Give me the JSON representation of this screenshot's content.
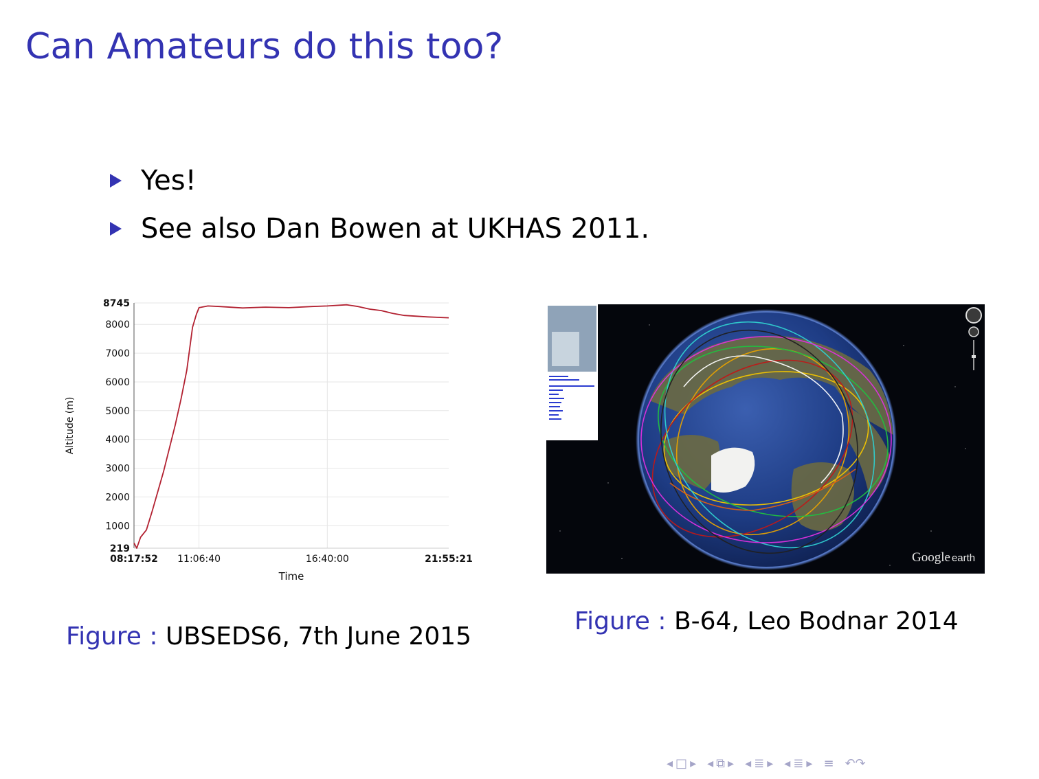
{
  "slide": {
    "title": "Can Amateurs do this too?",
    "bullets": [
      "Yes!",
      "See also Dan Bowen at UKHAS 2011."
    ]
  },
  "figures": [
    {
      "label": "Figure :",
      "caption": "UBSEDS6, 7th June 2015"
    },
    {
      "label": "Figure :",
      "caption": "B-64, Leo Bodnar 2014"
    }
  ],
  "globe": {
    "watermark_brand": "Google",
    "watermark_product": "earth"
  },
  "navigation": {
    "icons": [
      "frame-prev",
      "frame",
      "frame-next",
      "subsection-prev",
      "subsection",
      "subsection-next",
      "section-prev",
      "section",
      "section-next",
      "subsubsection-prev",
      "subsubsection",
      "subsubsection-next",
      "align",
      "search"
    ]
  },
  "colors": {
    "title": "#3333b2",
    "line": "#b22030",
    "grid": "#e6e6e6"
  },
  "chart_data": {
    "type": "line",
    "xlabel": "Time",
    "ylabel": "Altitude (m)",
    "ylim": [
      219,
      8745
    ],
    "y_ticks": [
      {
        "value": 219,
        "label": "219",
        "bold": true
      },
      {
        "value": 1000,
        "label": "1000",
        "bold": false
      },
      {
        "value": 2000,
        "label": "2000",
        "bold": false
      },
      {
        "value": 3000,
        "label": "3000",
        "bold": false
      },
      {
        "value": 4000,
        "label": "4000",
        "bold": false
      },
      {
        "value": 5000,
        "label": "5000",
        "bold": false
      },
      {
        "value": 6000,
        "label": "6000",
        "bold": false
      },
      {
        "value": 7000,
        "label": "7000",
        "bold": false
      },
      {
        "value": 8000,
        "label": "8000",
        "bold": false
      },
      {
        "value": 8745,
        "label": "8745",
        "bold": true
      }
    ],
    "x_ticks": [
      {
        "value": "08:17:52",
        "label": "08:17:52",
        "bold": true
      },
      {
        "value": "11:06:40",
        "label": "11:06:40",
        "bold": false
      },
      {
        "value": "16:40:00",
        "label": "16:40:00",
        "bold": false
      },
      {
        "value": "21:55:21",
        "label": "21:55:21",
        "bold": true
      }
    ],
    "series": [
      {
        "points": [
          [
            "08:17:52",
            400
          ],
          [
            "08:25:00",
            219
          ],
          [
            "08:35:00",
            600
          ],
          [
            "08:50:00",
            850
          ],
          [
            "09:05:00",
            1500
          ],
          [
            "09:20:00",
            2200
          ],
          [
            "09:35:00",
            2900
          ],
          [
            "09:50:00",
            3700
          ],
          [
            "10:05:00",
            4500
          ],
          [
            "10:20:00",
            5400
          ],
          [
            "10:35:00",
            6400
          ],
          [
            "10:50:00",
            7900
          ],
          [
            "11:00:00",
            8350
          ],
          [
            "11:06:40",
            8580
          ],
          [
            "11:30:00",
            8640
          ],
          [
            "12:00:00",
            8620
          ],
          [
            "13:00:00",
            8570
          ],
          [
            "14:00:00",
            8600
          ],
          [
            "15:00:00",
            8580
          ],
          [
            "16:00:00",
            8620
          ],
          [
            "16:40:00",
            8640
          ],
          [
            "17:30:00",
            8680
          ],
          [
            "18:00:00",
            8620
          ],
          [
            "18:30:00",
            8530
          ],
          [
            "19:00:00",
            8480
          ],
          [
            "19:30:00",
            8380
          ],
          [
            "20:00:00",
            8310
          ],
          [
            "21:00:00",
            8260
          ],
          [
            "21:55:21",
            8230
          ]
        ]
      }
    ],
    "grid": true,
    "legend": "none"
  }
}
